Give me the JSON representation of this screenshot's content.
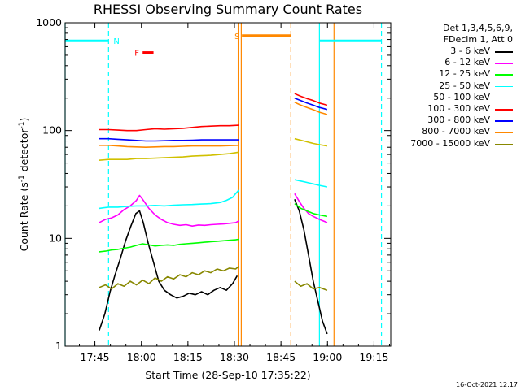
{
  "chart_data": {
    "type": "line",
    "title": "RHESSI Observing Summary Count Rates",
    "xlabel": "Start Time (28-Sep-10 17:35:22)",
    "ylabel": "Count Rate (s",
    "ylabel_sup1": "-1",
    "ylabel_mid": " detector",
    "ylabel_sup2": "-1",
    "ylabel_end": ")",
    "y_scale": "log",
    "ylim": [
      1,
      1000
    ],
    "xlim_minutes": [
      0,
      105
    ],
    "x_ticks": [
      {
        "label": "17:45",
        "minute": 9.6
      },
      {
        "label": "18:00",
        "minute": 24.6
      },
      {
        "label": "18:15",
        "minute": 39.6
      },
      {
        "label": "18:30",
        "minute": 54.6
      },
      {
        "label": "18:45",
        "minute": 69.6
      },
      {
        "label": "19:00",
        "minute": 84.6
      },
      {
        "label": "19:15",
        "minute": 99.6
      }
    ],
    "y_ticks": [
      {
        "label": "1",
        "value": 1
      },
      {
        "label": "10",
        "value": 10
      },
      {
        "label": "100",
        "value": 100
      },
      {
        "label": "1000",
        "value": 1000
      }
    ],
    "legend_header": [
      "Det 1,3,4,5,6,9,",
      "FDecim 1, Att 0"
    ],
    "footer_stamp": "16-Oct-2021 12:17",
    "series": [
      {
        "name": "3 - 6 keV",
        "color": "#000000",
        "points": [
          [
            11.0,
            1.4
          ],
          [
            12.8,
            2.0
          ],
          [
            14.5,
            3.2
          ],
          [
            16.0,
            4.5
          ],
          [
            17.8,
            6.5
          ],
          [
            19.5,
            9.5
          ],
          [
            21.2,
            13.0
          ],
          [
            22.8,
            17.0
          ],
          [
            24.0,
            18.0
          ],
          [
            25.2,
            14.0
          ],
          [
            26.8,
            9.0
          ],
          [
            28.5,
            6.0
          ],
          [
            30.2,
            4.0
          ],
          [
            32.0,
            3.3
          ],
          [
            34.0,
            3.0
          ],
          [
            36.0,
            2.8
          ],
          [
            38.0,
            2.9
          ],
          [
            40.0,
            3.1
          ],
          [
            42.0,
            3.0
          ],
          [
            44.0,
            3.2
          ],
          [
            46.0,
            3.0
          ],
          [
            48.0,
            3.3
          ],
          [
            50.0,
            3.5
          ],
          [
            52.0,
            3.3
          ],
          [
            54.0,
            3.8
          ],
          [
            55.5,
            4.5
          ],
          [
            null,
            null
          ],
          [
            74.0,
            23.0
          ],
          [
            75.5,
            18.0
          ],
          [
            77.0,
            12.0
          ],
          [
            78.5,
            7.0
          ],
          [
            80.0,
            4.0
          ],
          [
            81.5,
            2.6
          ],
          [
            83.0,
            1.7
          ],
          [
            84.5,
            1.3
          ]
        ]
      },
      {
        "name": "6 - 12 keV",
        "color": "#ff00ff",
        "points": [
          [
            11.0,
            14.0
          ],
          [
            13.0,
            15.0
          ],
          [
            15.0,
            15.5
          ],
          [
            17.0,
            16.5
          ],
          [
            19.0,
            18.5
          ],
          [
            21.0,
            20.0
          ],
          [
            23.0,
            22.5
          ],
          [
            24.0,
            25.0
          ],
          [
            25.0,
            23.0
          ],
          [
            27.0,
            19.0
          ],
          [
            29.0,
            16.5
          ],
          [
            31.0,
            15.0
          ],
          [
            33.0,
            14.0
          ],
          [
            35.0,
            13.5
          ],
          [
            37.0,
            13.2
          ],
          [
            39.0,
            13.4
          ],
          [
            41.0,
            13.0
          ],
          [
            43.0,
            13.3
          ],
          [
            45.0,
            13.2
          ],
          [
            47.0,
            13.4
          ],
          [
            49.0,
            13.5
          ],
          [
            51.0,
            13.6
          ],
          [
            53.0,
            13.8
          ],
          [
            55.0,
            14.0
          ],
          [
            56.0,
            14.5
          ],
          [
            null,
            null
          ],
          [
            74.0,
            26.0
          ],
          [
            75.5,
            22.0
          ],
          [
            77.0,
            19.0
          ],
          [
            78.5,
            17.0
          ],
          [
            80.0,
            16.0
          ],
          [
            82.0,
            15.0
          ],
          [
            84.5,
            14.0
          ]
        ]
      },
      {
        "name": "12 - 25 keV",
        "color": "#00ff00",
        "points": [
          [
            11.0,
            7.5
          ],
          [
            13.0,
            7.6
          ],
          [
            15.0,
            7.8
          ],
          [
            17.0,
            7.9
          ],
          [
            19.0,
            8.1
          ],
          [
            21.0,
            8.3
          ],
          [
            23.0,
            8.6
          ],
          [
            25.0,
            8.9
          ],
          [
            27.0,
            8.7
          ],
          [
            29.0,
            8.5
          ],
          [
            31.0,
            8.6
          ],
          [
            33.0,
            8.7
          ],
          [
            35.0,
            8.6
          ],
          [
            37.0,
            8.8
          ],
          [
            39.0,
            8.9
          ],
          [
            41.0,
            9.0
          ],
          [
            43.0,
            9.1
          ],
          [
            45.0,
            9.2
          ],
          [
            47.0,
            9.3
          ],
          [
            49.0,
            9.4
          ],
          [
            51.0,
            9.5
          ],
          [
            53.0,
            9.6
          ],
          [
            55.0,
            9.7
          ],
          [
            56.0,
            9.8
          ],
          [
            null,
            null
          ],
          [
            74.0,
            21.0
          ],
          [
            76.0,
            19.0
          ],
          [
            78.0,
            18.0
          ],
          [
            80.0,
            17.0
          ],
          [
            82.0,
            16.5
          ],
          [
            84.5,
            16.0
          ]
        ]
      },
      {
        "name": "25 - 50 keV",
        "color": "#00ffff",
        "points": [
          [
            11.0,
            19.0
          ],
          [
            14.0,
            19.5
          ],
          [
            17.0,
            19.5
          ],
          [
            20.0,
            19.8
          ],
          [
            23.0,
            20.0
          ],
          [
            26.0,
            20.0
          ],
          [
            29.0,
            20.2
          ],
          [
            32.0,
            20.0
          ],
          [
            35.0,
            20.3
          ],
          [
            38.0,
            20.5
          ],
          [
            41.0,
            20.6
          ],
          [
            44.0,
            20.8
          ],
          [
            47.0,
            21.0
          ],
          [
            50.0,
            21.5
          ],
          [
            52.0,
            22.5
          ],
          [
            54.0,
            24.0
          ],
          [
            55.0,
            26.0
          ],
          [
            56.0,
            28.0
          ],
          [
            null,
            null
          ],
          [
            74.0,
            35.0
          ],
          [
            76.0,
            34.0
          ],
          [
            78.0,
            33.0
          ],
          [
            80.0,
            32.0
          ],
          [
            82.0,
            31.0
          ],
          [
            84.5,
            30.0
          ]
        ]
      },
      {
        "name": "50 - 100 keV",
        "color": "#d0c000",
        "points": [
          [
            11.0,
            53.0
          ],
          [
            14.0,
            54.0
          ],
          [
            17.0,
            54.0
          ],
          [
            20.0,
            54.0
          ],
          [
            23.0,
            55.0
          ],
          [
            26.0,
            55.0
          ],
          [
            29.0,
            55.5
          ],
          [
            32.0,
            56.0
          ],
          [
            35.0,
            56.5
          ],
          [
            38.0,
            57.0
          ],
          [
            41.0,
            58.0
          ],
          [
            44.0,
            58.5
          ],
          [
            47.0,
            59.0
          ],
          [
            50.0,
            60.0
          ],
          [
            53.0,
            61.0
          ],
          [
            56.0,
            63.0
          ],
          [
            null,
            null
          ],
          [
            74.0,
            84.0
          ],
          [
            77.0,
            80.0
          ],
          [
            80.0,
            76.0
          ],
          [
            82.0,
            74.0
          ],
          [
            84.5,
            72.0
          ]
        ]
      },
      {
        "name": "100 - 300 keV",
        "color": "#ff0000",
        "points": [
          [
            11.0,
            102.0
          ],
          [
            14.0,
            102.0
          ],
          [
            17.0,
            101.0
          ],
          [
            20.0,
            100.0
          ],
          [
            23.0,
            100.0
          ],
          [
            26.0,
            102.0
          ],
          [
            29.0,
            104.0
          ],
          [
            32.0,
            103.0
          ],
          [
            35.0,
            104.0
          ],
          [
            38.0,
            105.0
          ],
          [
            41.0,
            107.0
          ],
          [
            44.0,
            109.0
          ],
          [
            47.0,
            110.0
          ],
          [
            50.0,
            111.0
          ],
          [
            53.0,
            111.0
          ],
          [
            56.0,
            112.0
          ],
          [
            null,
            null
          ],
          [
            74.0,
            220.0
          ],
          [
            76.0,
            208.0
          ],
          [
            78.0,
            198.0
          ],
          [
            80.0,
            190.0
          ],
          [
            82.0,
            180.0
          ],
          [
            84.5,
            172.0
          ]
        ]
      },
      {
        "name": "300 - 800 keV",
        "color": "#0000ff",
        "points": [
          [
            11.0,
            84.0
          ],
          [
            14.0,
            84.0
          ],
          [
            17.0,
            83.0
          ],
          [
            20.0,
            82.0
          ],
          [
            23.0,
            81.0
          ],
          [
            26.0,
            80.0
          ],
          [
            29.0,
            80.0
          ],
          [
            32.0,
            80.5
          ],
          [
            35.0,
            81.0
          ],
          [
            38.0,
            81.0
          ],
          [
            41.0,
            81.5
          ],
          [
            44.0,
            82.0
          ],
          [
            47.0,
            82.0
          ],
          [
            50.0,
            82.0
          ],
          [
            53.0,
            82.0
          ],
          [
            56.0,
            82.0
          ],
          [
            null,
            null
          ],
          [
            74.0,
            200.0
          ],
          [
            76.0,
            190.0
          ],
          [
            78.0,
            180.0
          ],
          [
            80.0,
            172.0
          ],
          [
            82.0,
            164.0
          ],
          [
            84.5,
            157.0
          ]
        ]
      },
      {
        "name": "800 - 7000 keV",
        "color": "#ff8800",
        "points": [
          [
            11.0,
            73.0
          ],
          [
            14.0,
            73.0
          ],
          [
            17.0,
            72.0
          ],
          [
            20.0,
            71.0
          ],
          [
            23.0,
            70.5
          ],
          [
            26.0,
            70.0
          ],
          [
            29.0,
            70.5
          ],
          [
            32.0,
            71.0
          ],
          [
            35.0,
            71.0
          ],
          [
            38.0,
            71.5
          ],
          [
            41.0,
            72.0
          ],
          [
            44.0,
            72.0
          ],
          [
            47.0,
            72.0
          ],
          [
            50.0,
            72.0
          ],
          [
            53.0,
            72.5
          ],
          [
            56.0,
            73.0
          ],
          [
            null,
            null
          ],
          [
            74.0,
            183.0
          ],
          [
            76.0,
            172.0
          ],
          [
            78.0,
            164.0
          ],
          [
            80.0,
            156.0
          ],
          [
            82.0,
            148.0
          ],
          [
            84.5,
            141.0
          ]
        ]
      },
      {
        "name": "7000 - 15000 keV",
        "color": "#888800",
        "points": [
          [
            11.0,
            3.5
          ],
          [
            13.0,
            3.7
          ],
          [
            15.0,
            3.4
          ],
          [
            17.0,
            3.8
          ],
          [
            19.0,
            3.6
          ],
          [
            21.0,
            4.0
          ],
          [
            23.0,
            3.7
          ],
          [
            25.0,
            4.1
          ],
          [
            27.0,
            3.8
          ],
          [
            29.0,
            4.3
          ],
          [
            31.0,
            4.0
          ],
          [
            33.0,
            4.4
          ],
          [
            35.0,
            4.2
          ],
          [
            37.0,
            4.6
          ],
          [
            39.0,
            4.4
          ],
          [
            41.0,
            4.8
          ],
          [
            43.0,
            4.6
          ],
          [
            45.0,
            5.0
          ],
          [
            47.0,
            4.8
          ],
          [
            49.0,
            5.2
          ],
          [
            51.0,
            5.0
          ],
          [
            53.0,
            5.3
          ],
          [
            55.0,
            5.2
          ],
          [
            56.0,
            5.5
          ],
          [
            null,
            null
          ],
          [
            74.0,
            4.0
          ],
          [
            76.0,
            3.6
          ],
          [
            78.0,
            3.8
          ],
          [
            80.0,
            3.4
          ],
          [
            82.0,
            3.5
          ],
          [
            84.5,
            3.3
          ]
        ]
      }
    ],
    "markers": [
      {
        "label": "",
        "color": "#00ffff",
        "style": "solid",
        "minute": 0
      },
      {
        "label": "",
        "color": "#00ffff",
        "style": "dashed",
        "minute": 14.0
      },
      {
        "label": "",
        "color": "#ff8800",
        "style": "solid",
        "minute": 55.8
      },
      {
        "label": "",
        "color": "#ff8800",
        "style": "solid",
        "minute": 56.8
      },
      {
        "label": "",
        "color": "#ff8800",
        "style": "dashed",
        "minute": 72.8
      },
      {
        "label": "",
        "color": "#00ffff",
        "style": "solid",
        "minute": 82.0
      },
      {
        "label": "",
        "color": "#ff8800",
        "style": "solid",
        "minute": 86.7
      },
      {
        "label": "",
        "color": "#00ffff",
        "style": "dashed",
        "minute": 102.0
      }
    ],
    "top_bars": [
      {
        "label": "",
        "color": "#00ffff",
        "from": 0,
        "to": 14.0,
        "value": 680
      },
      {
        "label": "N",
        "color": "#00ffff",
        "from": 14.0,
        "to": 14.0,
        "value": 680
      },
      {
        "label": "S",
        "color": "#ff8800",
        "from": 57.0,
        "to": 72.8,
        "value": 760
      },
      {
        "label": "",
        "color": "#00ffff",
        "from": 82.0,
        "to": 102.0,
        "value": 680
      },
      {
        "label": "F",
        "color": "#ff0000",
        "from": 25.0,
        "to": 28.5,
        "value": 530
      }
    ]
  }
}
